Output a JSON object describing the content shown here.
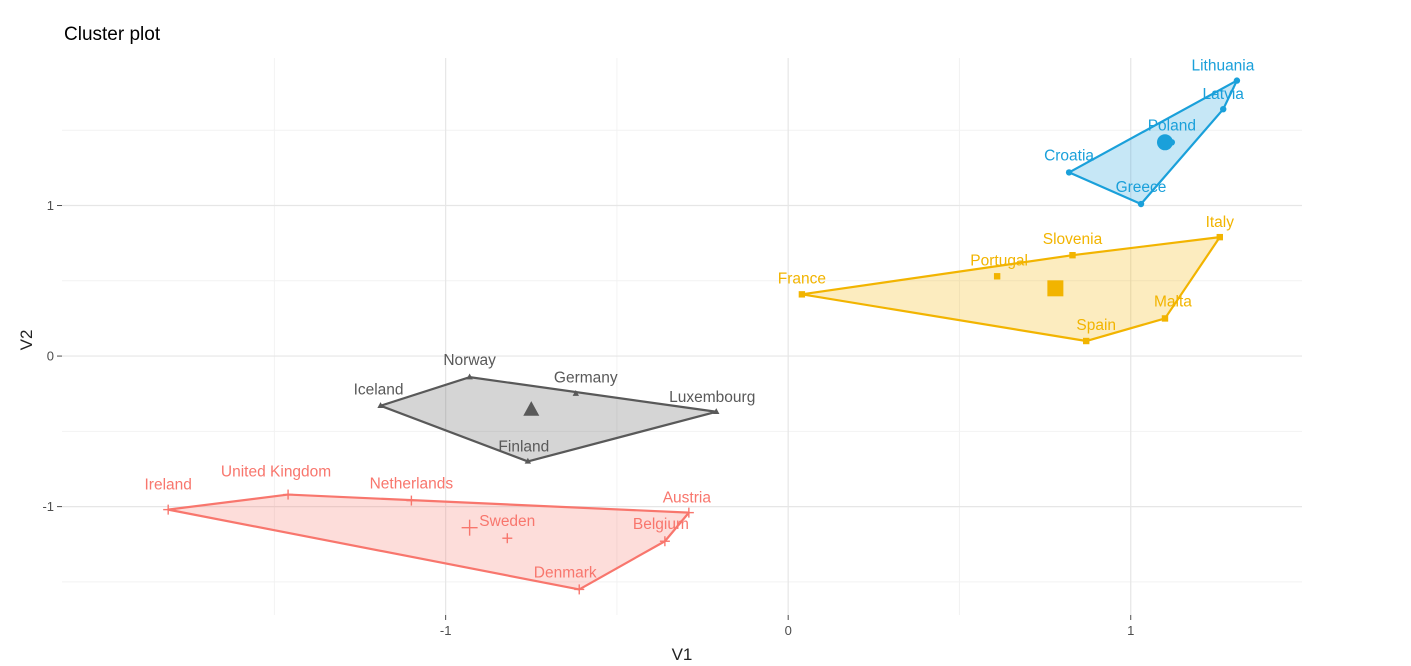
{
  "chart_data": {
    "type": "scatter",
    "title": "Cluster plot",
    "xlabel": "V1",
    "ylabel": "V2",
    "xlim": [
      -2.12,
      1.5
    ],
    "ylim": [
      -1.72,
      1.98
    ],
    "x_ticks": [
      -1,
      0,
      1
    ],
    "x_tick_labels": [
      "-1",
      "0",
      "1"
    ],
    "y_ticks": [
      -1,
      0,
      1
    ],
    "y_tick_labels": [
      "-1",
      "0",
      "1"
    ],
    "grid": true,
    "legend": "none",
    "series": [
      {
        "color": "#F8766D",
        "marker": "cross",
        "points": [
          {
            "label": "Ireland",
            "x": -1.81,
            "y": -1.02
          },
          {
            "label": "United Kingdom",
            "x": -1.46,
            "y": -0.92
          },
          {
            "label": "Netherlands",
            "x": -1.1,
            "y": -0.96
          },
          {
            "label": "Austria",
            "x": -0.29,
            "y": -1.04
          },
          {
            "label": "Belgium",
            "x": -0.36,
            "y": -1.23
          },
          {
            "label": "Denmark",
            "x": -0.61,
            "y": -1.55
          },
          {
            "label": "Sweden",
            "x": -0.82,
            "y": -1.21
          }
        ],
        "centroid": {
          "x": -0.93,
          "y": -1.14
        }
      },
      {
        "color": "#595959",
        "marker": "triangle",
        "points": [
          {
            "label": "Iceland",
            "x": -1.19,
            "y": -0.33
          },
          {
            "label": "Norway",
            "x": -0.93,
            "y": -0.14
          },
          {
            "label": "Germany",
            "x": -0.62,
            "y": -0.25
          },
          {
            "label": "Luxembourg",
            "x": -0.21,
            "y": -0.37
          },
          {
            "label": "Finland",
            "x": -0.76,
            "y": -0.7
          }
        ],
        "centroid": {
          "x": -0.75,
          "y": -0.36
        }
      },
      {
        "color": "#F2B400",
        "marker": "square",
        "points": [
          {
            "label": "France",
            "x": 0.04,
            "y": 0.41
          },
          {
            "label": "Portugal",
            "x": 0.61,
            "y": 0.53
          },
          {
            "label": "Slovenia",
            "x": 0.83,
            "y": 0.67
          },
          {
            "label": "Italy",
            "x": 1.26,
            "y": 0.79
          },
          {
            "label": "Malta",
            "x": 1.1,
            "y": 0.25
          },
          {
            "label": "Spain",
            "x": 0.87,
            "y": 0.1
          }
        ],
        "centroid": {
          "x": 0.78,
          "y": 0.45
        }
      },
      {
        "color": "#1AA0DA",
        "marker": "circle",
        "points": [
          {
            "label": "Lithuania",
            "x": 1.31,
            "y": 1.83
          },
          {
            "label": "Latvia",
            "x": 1.27,
            "y": 1.64
          },
          {
            "label": "Poland",
            "x": 1.12,
            "y": 1.42
          },
          {
            "label": "Croatia",
            "x": 0.82,
            "y": 1.22
          },
          {
            "label": "Greece",
            "x": 1.03,
            "y": 1.01
          }
        ],
        "centroid": {
          "x": 1.1,
          "y": 1.42
        }
      }
    ]
  }
}
